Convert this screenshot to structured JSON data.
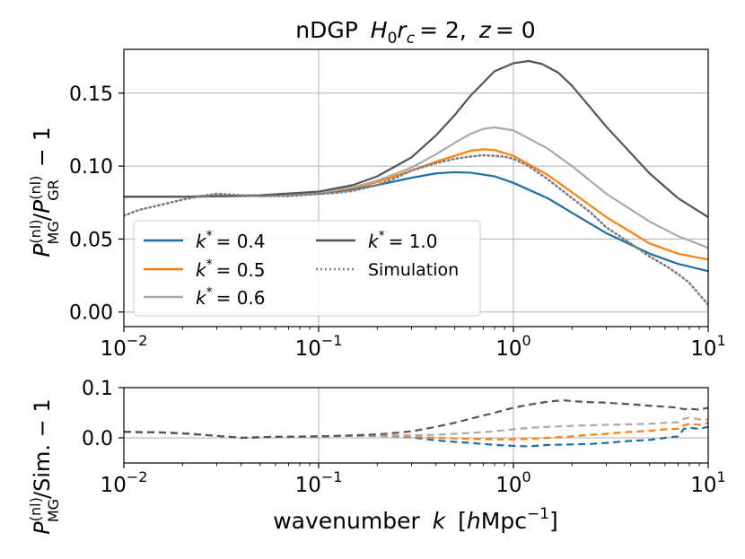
{
  "chart_data": [
    {
      "type": "line",
      "title": "nDGP H₀r_c = 2, z = 0",
      "title_parts": {
        "name": "nDGP",
        "h0": "H",
        "h0sub": "0",
        "r": "r",
        "rsub": "c",
        "eq": "= 2,",
        "z": "z",
        "zeq": "= 0"
      },
      "ylabel": "P^(nl)_MG / P^(nl)_GR − 1",
      "ylabel_parts": {
        "P": "P",
        "sup": "(nl)",
        "subMG": "MG",
        "slash": "/",
        "P2": "P",
        "sup2": "(nl)",
        "subGR": "GR",
        "tail": "− 1"
      },
      "xscale": "log",
      "xlim": [
        0.01,
        10
      ],
      "ylim": [
        -0.01,
        0.18
      ],
      "x_ticks": [
        0.01,
        0.1,
        1,
        10
      ],
      "x_tick_labels": [
        {
          "base": "10",
          "exp": "−2"
        },
        {
          "base": "10",
          "exp": "−1"
        },
        {
          "base": "10",
          "exp": "0"
        },
        {
          "base": "10",
          "exp": "1"
        }
      ],
      "y_ticks": [
        0.0,
        0.05,
        0.1,
        0.15
      ],
      "y_tick_labels": [
        "0.00",
        "0.05",
        "0.10",
        "0.15"
      ],
      "grid": true,
      "legend_position": "lower-left",
      "legend": [
        {
          "name": "k* = 0.4",
          "label_parts": {
            "k": "k",
            "sup": "*",
            "rest": "= 0.4"
          }
        },
        {
          "name": "k* = 1.0",
          "label_parts": {
            "k": "k",
            "sup": "*",
            "rest": "= 1.0"
          }
        },
        {
          "name": "k* = 0.5",
          "label_parts": {
            "k": "k",
            "sup": "*",
            "rest": "= 0.5"
          }
        },
        {
          "name": "Simulation",
          "label_parts": {
            "k": "",
            "sup": "",
            "rest": "Simulation"
          }
        },
        {
          "name": "k* = 0.6",
          "label_parts": {
            "k": "k",
            "sup": "*",
            "rest": "= 0.6"
          }
        }
      ],
      "series": [
        {
          "name": "k* = 0.4",
          "color": "#1f6fa5",
          "style": "solid",
          "x": [
            0.01,
            0.02,
            0.05,
            0.1,
            0.15,
            0.2,
            0.3,
            0.4,
            0.5,
            0.6,
            0.8,
            1.0,
            1.5,
            2.0,
            3.0,
            5.0,
            7.0,
            10.0
          ],
          "y": [
            0.079,
            0.079,
            0.0795,
            0.081,
            0.084,
            0.087,
            0.092,
            0.095,
            0.0958,
            0.0955,
            0.093,
            0.0885,
            0.078,
            0.068,
            0.054,
            0.04,
            0.033,
            0.028
          ]
        },
        {
          "name": "k* = 0.5",
          "color": "#ff7f0e",
          "style": "solid",
          "x": [
            0.01,
            0.02,
            0.05,
            0.1,
            0.15,
            0.2,
            0.3,
            0.4,
            0.5,
            0.6,
            0.7,
            0.8,
            1.0,
            1.5,
            2.0,
            3.0,
            5.0,
            7.0,
            10.0
          ],
          "y": [
            0.079,
            0.079,
            0.0797,
            0.0815,
            0.085,
            0.089,
            0.097,
            0.103,
            0.107,
            0.1105,
            0.1115,
            0.111,
            0.107,
            0.094,
            0.082,
            0.065,
            0.047,
            0.04,
            0.036
          ]
        },
        {
          "name": "k* = 0.6",
          "color": "#aaaaaa",
          "style": "solid",
          "x": [
            0.01,
            0.02,
            0.05,
            0.1,
            0.15,
            0.2,
            0.3,
            0.4,
            0.5,
            0.6,
            0.7,
            0.8,
            1.0,
            1.5,
            2.0,
            3.0,
            5.0,
            7.0,
            10.0
          ],
          "y": [
            0.079,
            0.079,
            0.0797,
            0.082,
            0.0855,
            0.09,
            0.099,
            0.108,
            0.116,
            0.122,
            0.1255,
            0.1265,
            0.1245,
            0.112,
            0.1,
            0.081,
            0.062,
            0.052,
            0.044
          ]
        },
        {
          "name": "k* = 1.0",
          "color": "#555555",
          "style": "solid",
          "x": [
            0.01,
            0.02,
            0.05,
            0.1,
            0.15,
            0.2,
            0.3,
            0.4,
            0.5,
            0.6,
            0.8,
            1.0,
            1.2,
            1.4,
            1.7,
            2.0,
            3.0,
            5.0,
            7.0,
            10.0
          ],
          "y": [
            0.079,
            0.079,
            0.08,
            0.0825,
            0.087,
            0.093,
            0.106,
            0.121,
            0.135,
            0.148,
            0.165,
            0.1705,
            0.172,
            0.17,
            0.164,
            0.155,
            0.127,
            0.095,
            0.078,
            0.065
          ]
        },
        {
          "name": "Simulation",
          "color": "#7f7f7f",
          "style": "dotted",
          "x": [
            0.01,
            0.012,
            0.015,
            0.02,
            0.025,
            0.03,
            0.035,
            0.04,
            0.05,
            0.06,
            0.07,
            0.08,
            0.1,
            0.12,
            0.15,
            0.2,
            0.25,
            0.3,
            0.4,
            0.5,
            0.6,
            0.7,
            0.8,
            0.9,
            1.0,
            1.2,
            1.5,
            2.0,
            2.5,
            3.0,
            4.0,
            5.0,
            6.0,
            7.0,
            8.0,
            9.0,
            10.0
          ],
          "y": [
            0.066,
            0.07,
            0.073,
            0.077,
            0.0795,
            0.081,
            0.0805,
            0.08,
            0.0795,
            0.0795,
            0.0795,
            0.08,
            0.081,
            0.0815,
            0.083,
            0.087,
            0.092,
            0.097,
            0.102,
            0.105,
            0.1065,
            0.1075,
            0.107,
            0.1065,
            0.105,
            0.1,
            0.091,
            0.078,
            0.068,
            0.058,
            0.047,
            0.038,
            0.032,
            0.026,
            0.02,
            0.012,
            0.005
          ]
        }
      ]
    },
    {
      "type": "line",
      "xlabel": "wavenumber k [hMpc⁻¹]",
      "xlabel_parts": {
        "pre": "wavenumber",
        "k": "k",
        "open": "[",
        "h": "h",
        "unit": "Mpc",
        "exp": "−1",
        "close": "]"
      },
      "ylabel": "P^(nl)_MG / Sim. − 1",
      "ylabel_parts": {
        "P": "P",
        "sup": "(nl)",
        "subMG": "MG",
        "tail": "/Sim. − 1"
      },
      "xscale": "log",
      "xlim": [
        0.01,
        10
      ],
      "ylim": [
        -0.05,
        0.1
      ],
      "x_ticks": [
        0.01,
        0.1,
        1,
        10
      ],
      "x_tick_labels": [
        {
          "base": "10",
          "exp": "−2"
        },
        {
          "base": "10",
          "exp": "−1"
        },
        {
          "base": "10",
          "exp": "0"
        },
        {
          "base": "10",
          "exp": "1"
        }
      ],
      "y_ticks": [
        0.0,
        0.1
      ],
      "y_tick_labels": [
        "0.0",
        "0.1"
      ],
      "grid": true,
      "series": [
        {
          "name": "k* = 0.4",
          "color": "#1f6fa5",
          "style": "dashed",
          "x": [
            0.01,
            0.015,
            0.02,
            0.03,
            0.04,
            0.06,
            0.1,
            0.15,
            0.2,
            0.25,
            0.3,
            0.4,
            0.5,
            0.6,
            0.8,
            1.0,
            1.2,
            1.5,
            2.0,
            2.5,
            3.0,
            4.0,
            5.0,
            6.0,
            7.0,
            7.5,
            8.0,
            9.0,
            10.0
          ],
          "y": [
            0.012,
            0.011,
            0.009,
            0.004,
            0.0,
            0.002,
            0.003,
            0.004,
            0.004,
            0.003,
            0.001,
            -0.005,
            -0.008,
            -0.01,
            -0.014,
            -0.016,
            -0.017,
            -0.014,
            -0.013,
            -0.012,
            -0.01,
            -0.006,
            -0.004,
            0.0,
            0.003,
            0.018,
            0.02,
            0.018,
            0.022
          ]
        },
        {
          "name": "k* = 0.5",
          "color": "#ff7f0e",
          "style": "dashed",
          "x": [
            0.01,
            0.015,
            0.02,
            0.03,
            0.04,
            0.06,
            0.1,
            0.15,
            0.2,
            0.25,
            0.3,
            0.4,
            0.5,
            0.6,
            0.8,
            1.0,
            1.2,
            1.5,
            2.0,
            2.5,
            3.0,
            4.0,
            5.0,
            6.0,
            7.0,
            7.5,
            8.0,
            9.0,
            10.0
          ],
          "y": [
            0.012,
            0.011,
            0.009,
            0.004,
            0.0,
            0.002,
            0.003,
            0.004,
            0.004,
            0.003,
            0.002,
            0.0,
            -0.001,
            -0.002,
            -0.003,
            -0.003,
            -0.002,
            0.0,
            0.003,
            0.006,
            0.008,
            0.012,
            0.014,
            0.017,
            0.018,
            0.025,
            0.028,
            0.026,
            0.03
          ]
        },
        {
          "name": "k* = 0.6",
          "color": "#aaaaaa",
          "style": "dashed",
          "x": [
            0.01,
            0.015,
            0.02,
            0.03,
            0.04,
            0.06,
            0.1,
            0.15,
            0.2,
            0.25,
            0.3,
            0.4,
            0.5,
            0.6,
            0.8,
            1.0,
            1.2,
            1.5,
            2.0,
            2.5,
            3.0,
            4.0,
            5.0,
            6.0,
            7.0,
            7.5,
            8.0,
            9.0,
            10.0
          ],
          "y": [
            0.012,
            0.011,
            0.009,
            0.004,
            0.0,
            0.002,
            0.003,
            0.004,
            0.005,
            0.005,
            0.005,
            0.006,
            0.008,
            0.01,
            0.013,
            0.017,
            0.02,
            0.022,
            0.024,
            0.025,
            0.026,
            0.027,
            0.028,
            0.03,
            0.031,
            0.038,
            0.04,
            0.037,
            0.036
          ]
        },
        {
          "name": "k* = 1.0",
          "color": "#555555",
          "style": "dashed",
          "x": [
            0.01,
            0.015,
            0.02,
            0.03,
            0.04,
            0.06,
            0.1,
            0.15,
            0.2,
            0.25,
            0.3,
            0.4,
            0.5,
            0.6,
            0.8,
            1.0,
            1.2,
            1.5,
            1.8,
            2.0,
            2.5,
            3.0,
            4.0,
            5.0,
            6.0,
            7.0,
            7.5,
            8.0,
            9.0,
            10.0
          ],
          "y": [
            0.012,
            0.011,
            0.009,
            0.004,
            0.0,
            0.002,
            0.003,
            0.005,
            0.007,
            0.01,
            0.013,
            0.022,
            0.03,
            0.038,
            0.05,
            0.06,
            0.066,
            0.072,
            0.075,
            0.073,
            0.071,
            0.07,
            0.067,
            0.064,
            0.062,
            0.06,
            0.057,
            0.058,
            0.056,
            0.06
          ]
        }
      ]
    }
  ]
}
